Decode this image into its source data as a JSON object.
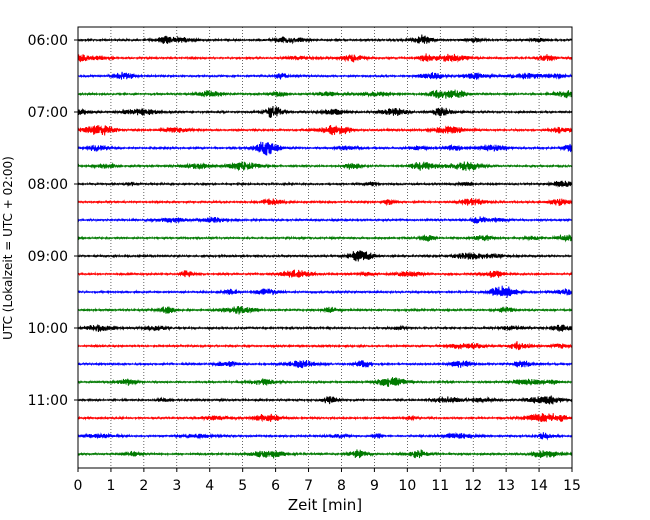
{
  "chart_data": {
    "type": "line",
    "title": "",
    "xlabel": "Zeit  [min]",
    "ylabel": "UTC (Lokalzeit = UTC + 02:00)",
    "xlim": [
      0,
      15
    ],
    "xticks": [
      0,
      1,
      2,
      3,
      4,
      5,
      6,
      7,
      8,
      9,
      10,
      11,
      12,
      13,
      14,
      15
    ],
    "y_tick_labels": [
      "06:00",
      "07:00",
      "08:00",
      "09:00",
      "10:00",
      "11:00"
    ],
    "grid": "vertical dotted at each minute",
    "trace_interval_minutes": 15,
    "start_time": "06:00",
    "trace_colors": [
      "#000000",
      "#ff0000",
      "#0000ff",
      "#007a00"
    ],
    "traces": [
      {
        "start": "06:00",
        "color": "#000000"
      },
      {
        "start": "06:15",
        "color": "#ff0000"
      },
      {
        "start": "06:30",
        "color": "#0000ff"
      },
      {
        "start": "06:45",
        "color": "#007a00"
      },
      {
        "start": "07:00",
        "color": "#000000"
      },
      {
        "start": "07:15",
        "color": "#ff0000"
      },
      {
        "start": "07:30",
        "color": "#0000ff"
      },
      {
        "start": "07:45",
        "color": "#007a00"
      },
      {
        "start": "08:00",
        "color": "#000000"
      },
      {
        "start": "08:15",
        "color": "#ff0000"
      },
      {
        "start": "08:30",
        "color": "#0000ff"
      },
      {
        "start": "08:45",
        "color": "#007a00"
      },
      {
        "start": "09:00",
        "color": "#000000"
      },
      {
        "start": "09:15",
        "color": "#ff0000"
      },
      {
        "start": "09:30",
        "color": "#0000ff"
      },
      {
        "start": "09:45",
        "color": "#007a00"
      },
      {
        "start": "10:00",
        "color": "#000000"
      },
      {
        "start": "10:15",
        "color": "#ff0000"
      },
      {
        "start": "10:30",
        "color": "#0000ff"
      },
      {
        "start": "10:45",
        "color": "#007a00"
      },
      {
        "start": "11:00",
        "color": "#000000"
      },
      {
        "start": "11:15",
        "color": "#ff0000"
      },
      {
        "start": "11:30",
        "color": "#0000ff"
      },
      {
        "start": "11:45",
        "color": "#007a00"
      }
    ]
  }
}
